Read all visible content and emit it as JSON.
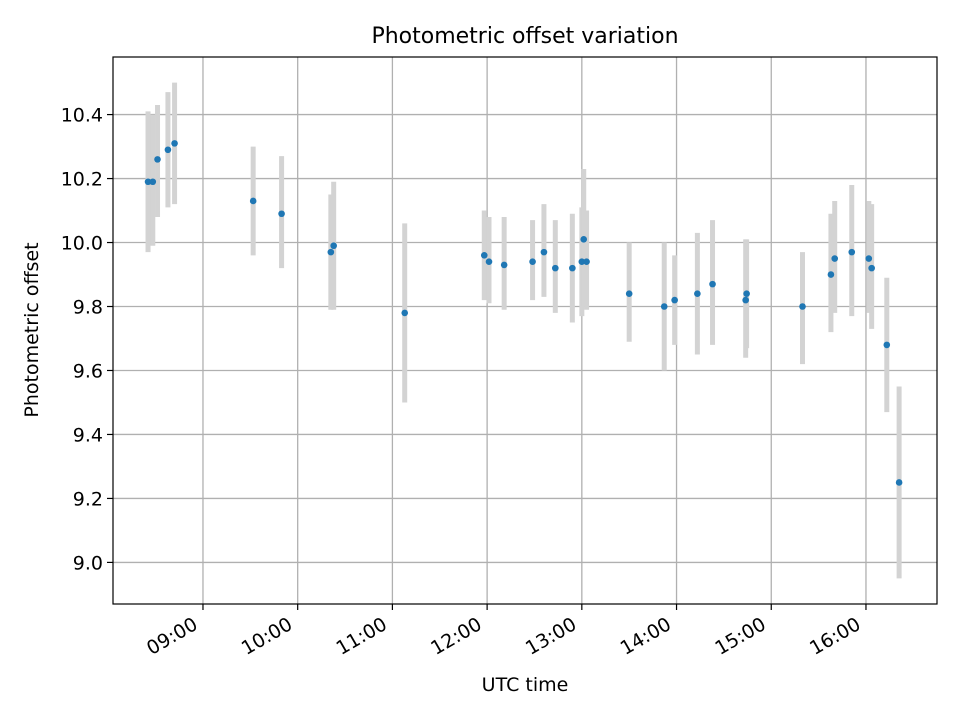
{
  "chart_data": {
    "type": "scatter",
    "title": "Photometric offset variation",
    "xlabel": "UTC time",
    "ylabel": "Photometric offset",
    "x_unit": "hours UTC",
    "xlim": [
      8.05,
      16.75
    ],
    "ylim": [
      8.87,
      10.58
    ],
    "grid": true,
    "x_ticks": [
      {
        "value": 9,
        "label": "09:00"
      },
      {
        "value": 10,
        "label": "10:00"
      },
      {
        "value": 11,
        "label": "11:00"
      },
      {
        "value": 12,
        "label": "12:00"
      },
      {
        "value": 13,
        "label": "13:00"
      },
      {
        "value": 14,
        "label": "14:00"
      },
      {
        "value": 15,
        "label": "15:00"
      },
      {
        "value": 16,
        "label": "16:00"
      }
    ],
    "y_ticks": [
      {
        "value": 9.0,
        "label": "9.0"
      },
      {
        "value": 9.2,
        "label": "9.2"
      },
      {
        "value": 9.4,
        "label": "9.4"
      },
      {
        "value": 9.6,
        "label": "9.6"
      },
      {
        "value": 9.8,
        "label": "9.8"
      },
      {
        "value": 10.0,
        "label": "10.0"
      },
      {
        "value": 10.2,
        "label": "10.2"
      },
      {
        "value": 10.4,
        "label": "10.4"
      }
    ],
    "point_color": "#1f77b4",
    "errorbar_color": "#d3d3d3",
    "points": [
      {
        "x": 8.42,
        "y": 10.19,
        "lo": 9.97,
        "hi": 10.41
      },
      {
        "x": 8.47,
        "y": 10.19,
        "lo": 9.99,
        "hi": 10.4
      },
      {
        "x": 8.52,
        "y": 10.26,
        "lo": 10.08,
        "hi": 10.43
      },
      {
        "x": 8.63,
        "y": 10.29,
        "lo": 10.11,
        "hi": 10.47
      },
      {
        "x": 8.7,
        "y": 10.31,
        "lo": 10.12,
        "hi": 10.5
      },
      {
        "x": 9.53,
        "y": 10.13,
        "lo": 9.96,
        "hi": 10.3
      },
      {
        "x": 9.83,
        "y": 10.09,
        "lo": 9.92,
        "hi": 10.27
      },
      {
        "x": 10.35,
        "y": 9.97,
        "lo": 9.79,
        "hi": 10.15
      },
      {
        "x": 10.38,
        "y": 9.99,
        "lo": 9.79,
        "hi": 10.19
      },
      {
        "x": 11.13,
        "y": 9.78,
        "lo": 9.5,
        "hi": 10.06
      },
      {
        "x": 11.97,
        "y": 9.96,
        "lo": 9.82,
        "hi": 10.1
      },
      {
        "x": 12.02,
        "y": 9.94,
        "lo": 9.81,
        "hi": 10.08
      },
      {
        "x": 12.18,
        "y": 9.93,
        "lo": 9.79,
        "hi": 10.08
      },
      {
        "x": 12.48,
        "y": 9.94,
        "lo": 9.82,
        "hi": 10.07
      },
      {
        "x": 12.6,
        "y": 9.97,
        "lo": 9.83,
        "hi": 10.12
      },
      {
        "x": 12.72,
        "y": 9.92,
        "lo": 9.78,
        "hi": 10.07
      },
      {
        "x": 12.9,
        "y": 9.92,
        "lo": 9.75,
        "hi": 10.09
      },
      {
        "x": 13.0,
        "y": 9.94,
        "lo": 9.77,
        "hi": 10.11
      },
      {
        "x": 13.02,
        "y": 10.01,
        "lo": 9.8,
        "hi": 10.23
      },
      {
        "x": 13.05,
        "y": 9.94,
        "lo": 9.79,
        "hi": 10.1
      },
      {
        "x": 13.5,
        "y": 9.84,
        "lo": 9.69,
        "hi": 10.0
      },
      {
        "x": 13.87,
        "y": 9.8,
        "lo": 9.6,
        "hi": 10.0
      },
      {
        "x": 13.98,
        "y": 9.82,
        "lo": 9.68,
        "hi": 9.96
      },
      {
        "x": 14.22,
        "y": 9.84,
        "lo": 9.65,
        "hi": 10.03
      },
      {
        "x": 14.38,
        "y": 9.87,
        "lo": 9.68,
        "hi": 10.07
      },
      {
        "x": 14.73,
        "y": 9.82,
        "lo": 9.64,
        "hi": 10.01
      },
      {
        "x": 14.74,
        "y": 9.84,
        "lo": 9.67,
        "hi": 10.01
      },
      {
        "x": 15.33,
        "y": 9.8,
        "lo": 9.62,
        "hi": 9.97
      },
      {
        "x": 15.63,
        "y": 9.9,
        "lo": 9.72,
        "hi": 10.09
      },
      {
        "x": 15.67,
        "y": 9.95,
        "lo": 9.78,
        "hi": 10.13
      },
      {
        "x": 15.85,
        "y": 9.97,
        "lo": 9.77,
        "hi": 10.18
      },
      {
        "x": 16.03,
        "y": 9.95,
        "lo": 9.78,
        "hi": 10.13
      },
      {
        "x": 16.06,
        "y": 9.92,
        "lo": 9.73,
        "hi": 10.12
      },
      {
        "x": 16.22,
        "y": 9.68,
        "lo": 9.47,
        "hi": 9.89
      },
      {
        "x": 16.35,
        "y": 9.25,
        "lo": 8.95,
        "hi": 9.55
      }
    ]
  }
}
